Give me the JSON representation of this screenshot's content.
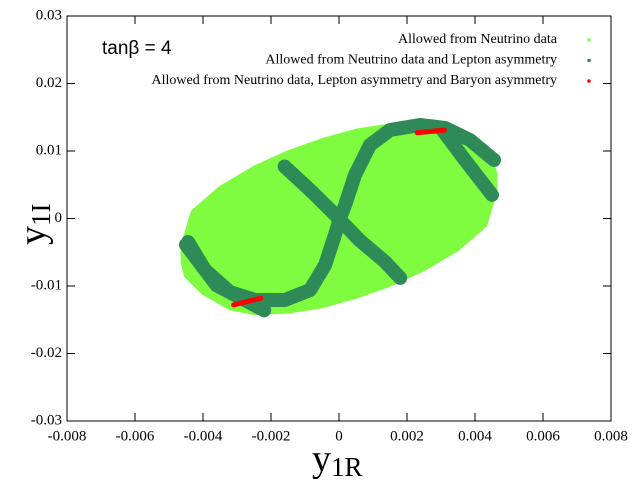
{
  "chart_data": {
    "type": "scatter",
    "annotation": "tanβ = 4",
    "x_label": {
      "base": "y",
      "subscript": "1R"
    },
    "y_label": {
      "base": "y",
      "subscript": "1I"
    },
    "xlim": [
      -0.008,
      0.008
    ],
    "xticks": [
      -0.008,
      -0.006,
      -0.004,
      -0.002,
      0,
      0.002,
      0.004,
      0.006,
      0.008
    ],
    "ylim": [
      -0.03,
      0.03
    ],
    "yticks": [
      -0.03,
      -0.02,
      -0.01,
      0,
      0.01,
      0.02,
      0.03
    ],
    "series": [
      {
        "name": "Allowed from Neutrino data",
        "color": "#80fc40",
        "x": [
          0.0046,
          0.0045,
          0.004,
          0.0032,
          0.0025,
          0.0015,
          0.0005,
          -0.0005,
          -0.0015,
          -0.0025,
          -0.0035,
          -0.0043,
          -0.0046,
          -0.0046,
          -0.0045,
          -0.004,
          -0.0032,
          -0.0025,
          -0.0015,
          -0.0005,
          0.0005,
          0.0015,
          0.0025,
          0.0035,
          0.0043,
          0.0046
        ],
        "y": [
          0.0065,
          0.0085,
          0.011,
          0.0133,
          0.014,
          0.0138,
          0.013,
          0.0116,
          0.0098,
          0.0075,
          0.0045,
          0.001,
          -0.004,
          -0.0065,
          -0.0085,
          -0.011,
          -0.0133,
          -0.014,
          -0.0138,
          -0.013,
          -0.0116,
          -0.0098,
          -0.0075,
          -0.0045,
          -0.001,
          0.004
        ]
      },
      {
        "name": "Allowed from Neutrino data and Lepton asymmetry",
        "color": "#2e8b57",
        "x": [
          0.00456,
          0.00385,
          0.00312,
          0.00238,
          0.0015,
          0.00091,
          0.00047,
          0.00018,
          3e-05,
          -0.00012,
          -0.00041,
          -0.00085,
          -0.00159,
          -0.00247,
          -0.00321,
          -0.00394,
          -0.00444,
          null,
          -0.0016,
          -0.00085,
          -0.00026,
          3e-05,
          0.0006,
          0.00135,
          0.0018,
          null,
          0.003,
          0.0037,
          0.0045,
          null,
          -0.0045,
          -0.0036,
          -0.0022
        ],
        "y": [
          0.00867,
          0.01163,
          0.01341,
          0.01385,
          0.01311,
          0.01089,
          0.00644,
          0.002,
          7e-05,
          -0.00244,
          -0.00689,
          -0.01059,
          -0.01207,
          -0.01207,
          -0.01089,
          -0.00763,
          -0.00348,
          null,
          0.0077,
          0.0042,
          0.0013,
          -0.0002,
          -0.0032,
          -0.0064,
          -0.0088,
          null,
          0.0134,
          0.0087,
          0.0035,
          null,
          -0.0039,
          -0.0099,
          -0.0136
        ]
      },
      {
        "name": "Allowed from Neutrino data, Lepton asymmetry and Baryon asymmetry",
        "color": "#ff0000",
        "x": [
          0.0023,
          0.0031,
          null,
          -0.0031,
          -0.0023
        ],
        "y": [
          0.0127,
          0.0131,
          null,
          -0.0128,
          -0.0118
        ]
      }
    ]
  }
}
